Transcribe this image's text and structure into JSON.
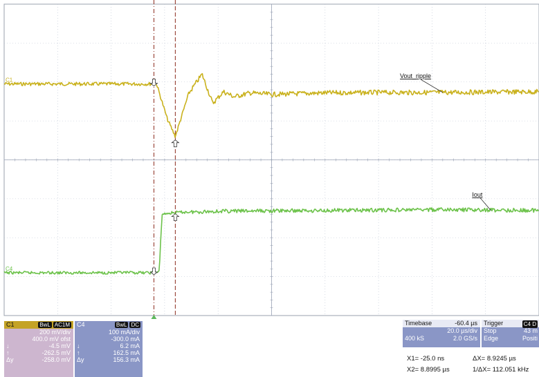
{
  "chart_data": {
    "type": "line",
    "title": "",
    "x_unit_per_div": "20.0 µs/div",
    "grid": true,
    "divisions": {
      "x": 10,
      "y": 8
    },
    "series": [
      {
        "name": "Vout_ripple",
        "channel_label": "C1",
        "color": "#c9b11c",
        "x_div": [
          0,
          2.8,
          2.85,
          3.05,
          3.2,
          3.45,
          3.7,
          3.9,
          4.1,
          4.3,
          4.6,
          5.0,
          6.0,
          7.0,
          8.0,
          9.0,
          10.0
        ],
        "y_div": [
          1.95,
          1.95,
          1.95,
          1.05,
          0.6,
          1.7,
          2.2,
          1.45,
          1.75,
          1.62,
          1.72,
          1.68,
          1.72,
          1.73,
          1.73,
          1.74,
          1.75
        ]
      },
      {
        "name": "Iout",
        "channel_label": "C4",
        "color": "#6cc24a",
        "x_div": [
          0,
          2.8,
          2.9,
          2.95,
          3.2,
          4.0,
          6.0,
          8.0,
          10.0
        ],
        "y_div": [
          -2.9,
          -2.9,
          -2.88,
          -1.4,
          -1.35,
          -1.32,
          -1.3,
          -1.28,
          -1.3
        ]
      }
    ],
    "annotations": [
      "Vout_ripple",
      "Iout"
    ],
    "cursors_x_div": [
      2.8,
      3.2
    ]
  },
  "ch1": {
    "label": "C1",
    "badges": [
      "BwL",
      "AC1M"
    ],
    "rows": [
      [
        "",
        "200 mV/div"
      ],
      [
        "",
        "400.0 mV ofst"
      ],
      [
        "↓",
        "-4.5 mV"
      ],
      [
        "↑",
        "-262.5 mV"
      ],
      [
        "Δy",
        "-258.0 mV"
      ]
    ]
  },
  "ch4": {
    "label": "C4",
    "badges": [
      "BwL",
      "DC"
    ],
    "rows": [
      [
        "",
        "100 mA/div"
      ],
      [
        "",
        "-300.0 mA"
      ],
      [
        "↓",
        "6.2 mA"
      ],
      [
        "↑",
        "162.5 mA"
      ],
      [
        "Δy",
        "156.3 mA"
      ]
    ]
  },
  "timebase": {
    "label": "Timebase",
    "offset": "-60.4 µs",
    "scale": "20.0 µs/div",
    "samples": "400 kS",
    "rate": "2.0 GS/s"
  },
  "trigger": {
    "label": "Trigger",
    "badge": "C4 D",
    "mode": "Stop",
    "level": "43 m",
    "type": "Edge",
    "slope": "Positi"
  },
  "measure": {
    "x1": "X1=   -25.0 ns",
    "dx": "ΔX=      8.9245 µs",
    "x2": "X2=  8.8995 µs",
    "inv_dx": "1/ΔX=   112.051 kHz"
  }
}
